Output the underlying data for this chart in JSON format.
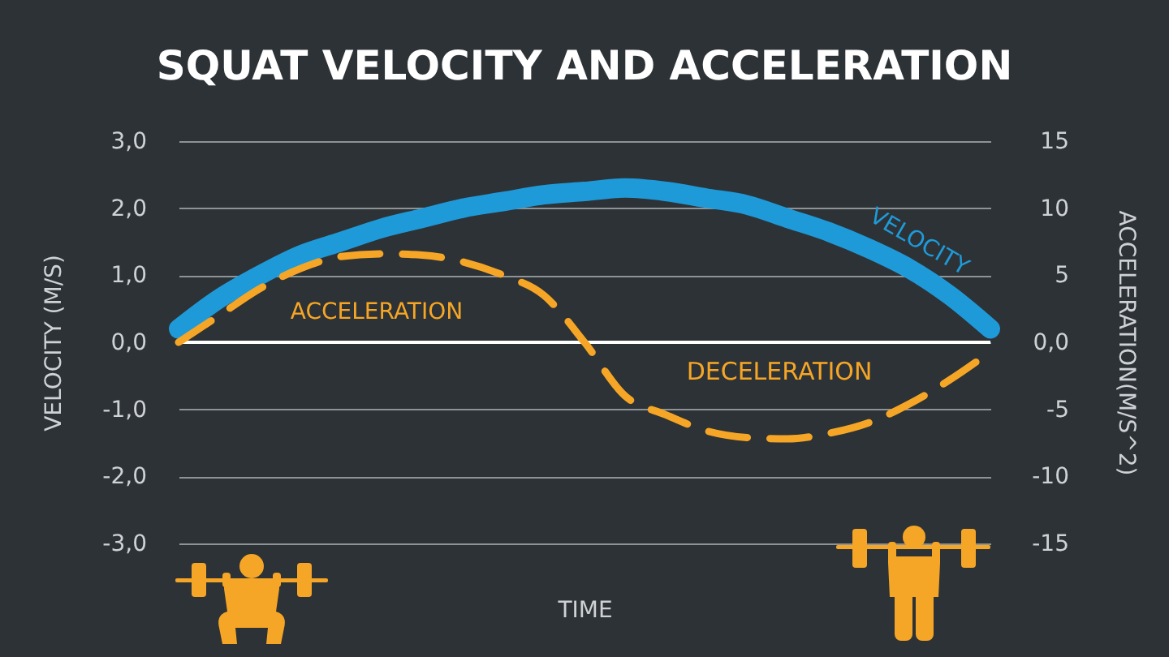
{
  "chart_data": {
    "type": "line",
    "title": "SQUAT VELOCITY AND ACCELERATION",
    "xlabel": "TIME",
    "ylabel": "VELOCITY (M/S)",
    "y2label": "ACCELERATION(M/S^2)",
    "categories": [
      null,
      null,
      null,
      null,
      null,
      null,
      null,
      null,
      null,
      null,
      null,
      null,
      null,
      null,
      null,
      null,
      null,
      null,
      null,
      null,
      null
    ],
    "series": [
      {
        "name": "VELOCITY",
        "color": "#1f9ad9",
        "line_style": "solid",
        "values": [
          0.2,
          0.65,
          1.0,
          1.3,
          1.5,
          1.7,
          1.85,
          2.0,
          2.1,
          2.2,
          2.25,
          2.3,
          2.25,
          2.15,
          2.05,
          1.85,
          1.65,
          1.4,
          1.1,
          0.7,
          0.2
        ]
      },
      {
        "name": "ACCELERATION",
        "color": "#f6a626",
        "axis": "y2",
        "line_style": "dashed",
        "values": [
          0,
          2,
          4,
          5.5,
          6.4,
          6.6,
          6.5,
          6,
          5,
          3.5,
          0,
          -4,
          -5.4,
          -6.6,
          -7.1,
          -7.2,
          -6.8,
          -6,
          -4.6,
          -2.8,
          -0.7
        ]
      }
    ],
    "ylim": [
      -3,
      3
    ],
    "yticks": [
      {
        "value": 3,
        "label": "3,0"
      },
      {
        "value": 2,
        "label": "2,0"
      },
      {
        "value": 1,
        "label": "1,0"
      },
      {
        "value": 0,
        "label": "0,0"
      },
      {
        "value": -1,
        "label": "-1,0"
      },
      {
        "value": -2,
        "label": "-2,0"
      },
      {
        "value": -3,
        "label": "-3,0"
      }
    ],
    "y2lim": [
      -15,
      15
    ],
    "y2ticks": [
      15,
      10,
      5,
      {
        "value": 0,
        "label": "0,0"
      },
      -5,
      -10,
      -15
    ],
    "grid": "y",
    "ref_lines": [
      {
        "axis": "y",
        "value": 0,
        "color": "#ffffff"
      }
    ],
    "annotations": [
      "DECELERATION"
    ]
  }
}
